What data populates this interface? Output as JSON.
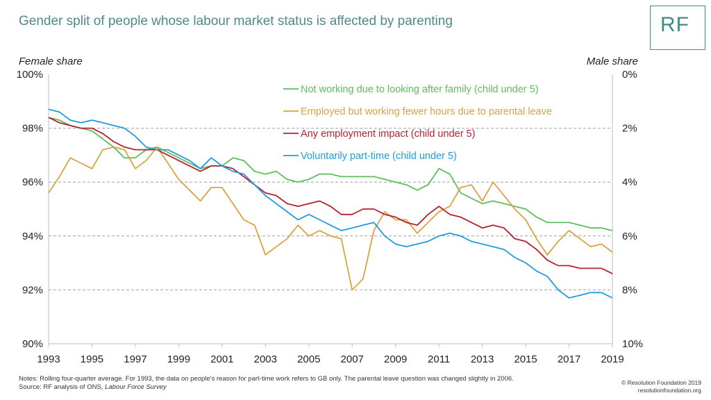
{
  "title": "Gender split of people whose labour market status is affected by parenting",
  "logo_text": "RF",
  "notes": {
    "line1": "Notes: Rolling four-quarter average. For 1993, the data on people's reason for part-time work refers to GB only. The parental leave question was changed slightly in 2006.",
    "source_prefix": "Source: RF analysis of ONS, ",
    "source_italic": "Labour Force Survey"
  },
  "copyright": {
    "line1": "© Resolution Foundation 2019",
    "line2": "resolutionfoundation.org"
  },
  "chart_data": {
    "type": "line",
    "ylabel_left": "Female share",
    "ylabel_right": "Male share",
    "ylim": [
      90,
      100
    ],
    "xlim": [
      1993,
      2019
    ],
    "left_ticks": [
      "90%",
      "92%",
      "94%",
      "96%",
      "98%",
      "100%"
    ],
    "right_ticks": [
      "10%",
      "8%",
      "6%",
      "4%",
      "2%",
      "0%"
    ],
    "x_ticks": [
      "1993",
      "1995",
      "1997",
      "1999",
      "2001",
      "2003",
      "2005",
      "2007",
      "2009",
      "2011",
      "2013",
      "2015",
      "2017",
      "2019"
    ],
    "grid": "horizontal dashed",
    "legend_position": "top-right",
    "colors": {
      "green": "#5bbf5b",
      "orange": "#d9a33f",
      "red": "#b8202f",
      "blue": "#1e9be3"
    },
    "series": [
      {
        "name": "Not working due to looking after family (child under 5)",
        "color": "#5bbf5b",
        "x": [
          1993,
          1993.5,
          1994,
          1994.5,
          1995,
          1995.5,
          1996,
          1996.5,
          1997,
          1997.5,
          1998,
          1998.5,
          1999,
          1999.5,
          2000,
          2000.5,
          2001,
          2001.5,
          2002,
          2002.5,
          2003,
          2003.5,
          2004,
          2004.5,
          2005,
          2005.5,
          2006,
          2006.5,
          2007,
          2007.5,
          2008,
          2008.5,
          2009,
          2009.5,
          2010,
          2010.5,
          2011,
          2011.5,
          2012,
          2012.5,
          2013,
          2013.5,
          2014,
          2014.5,
          2015,
          2015.5,
          2016,
          2016.5,
          2017,
          2017.5,
          2018,
          2018.5,
          2019
        ],
        "values": [
          98.4,
          98.3,
          98.1,
          98.0,
          97.9,
          97.6,
          97.3,
          96.9,
          96.9,
          97.2,
          97.3,
          97.1,
          96.9,
          96.7,
          96.5,
          96.6,
          96.6,
          96.9,
          96.8,
          96.4,
          96.3,
          96.4,
          96.1,
          96.0,
          96.1,
          96.3,
          96.3,
          96.2,
          96.2,
          96.2,
          96.2,
          96.1,
          96.0,
          95.9,
          95.7,
          95.9,
          96.5,
          96.3,
          95.6,
          95.4,
          95.2,
          95.3,
          95.2,
          95.1,
          95.0,
          94.7,
          94.5,
          94.5,
          94.5,
          94.4,
          94.3,
          94.3,
          94.2
        ]
      },
      {
        "name": "Employed but working fewer hours due to parental leave",
        "color": "#d9a33f",
        "x": [
          1993,
          1993.5,
          1994,
          1994.5,
          1995,
          1995.5,
          1996,
          1996.5,
          1997,
          1997.5,
          1998,
          1998.5,
          1999,
          1999.5,
          2000,
          2000.5,
          2001,
          2001.5,
          2002,
          2002.5,
          2003,
          2003.5,
          2004,
          2004.5,
          2005,
          2005.5,
          2006,
          2006.5,
          2007,
          2007.5,
          2008,
          2008.5,
          2009,
          2009.5,
          2010,
          2010.5,
          2011,
          2011.5,
          2012,
          2012.5,
          2013,
          2013.5,
          2014,
          2014.5,
          2015,
          2015.5,
          2016,
          2016.5,
          2017,
          2017.5,
          2018,
          2018.5,
          2019
        ],
        "values": [
          95.6,
          96.2,
          96.9,
          96.7,
          96.5,
          97.2,
          97.3,
          97.2,
          96.5,
          96.8,
          97.3,
          96.7,
          96.1,
          95.7,
          95.3,
          95.8,
          95.8,
          95.2,
          94.6,
          94.4,
          93.3,
          93.6,
          93.9,
          94.4,
          94.0,
          94.2,
          94.0,
          93.9,
          92.0,
          92.4,
          94.2,
          94.9,
          94.6,
          94.6,
          94.1,
          94.5,
          94.9,
          95.1,
          95.8,
          95.9,
          95.3,
          96.0,
          95.5,
          95.0,
          94.6,
          93.9,
          93.3,
          93.8,
          94.2,
          93.9,
          93.6,
          93.7,
          93.4
        ]
      },
      {
        "name": "Any employment impact (child under 5)",
        "color": "#b8202f",
        "x": [
          1993,
          1993.5,
          1994,
          1994.5,
          1995,
          1995.5,
          1996,
          1996.5,
          1997,
          1997.5,
          1998,
          1998.5,
          1999,
          1999.5,
          2000,
          2000.5,
          2001,
          2001.5,
          2002,
          2002.5,
          2003,
          2003.5,
          2004,
          2004.5,
          2005,
          2005.5,
          2006,
          2006.5,
          2007,
          2007.5,
          2008,
          2008.5,
          2009,
          2009.5,
          2010,
          2010.5,
          2011,
          2011.5,
          2012,
          2012.5,
          2013,
          2013.5,
          2014,
          2014.5,
          2015,
          2015.5,
          2016,
          2016.5,
          2017,
          2017.5,
          2018,
          2018.5,
          2019
        ],
        "values": [
          98.4,
          98.2,
          98.1,
          98.0,
          98.0,
          97.8,
          97.5,
          97.3,
          97.2,
          97.2,
          97.2,
          97.0,
          96.8,
          96.6,
          96.4,
          96.6,
          96.6,
          96.5,
          96.2,
          95.9,
          95.6,
          95.5,
          95.2,
          95.1,
          95.2,
          95.3,
          95.1,
          94.8,
          94.8,
          95.0,
          95.0,
          94.8,
          94.7,
          94.5,
          94.4,
          94.8,
          95.1,
          94.8,
          94.7,
          94.5,
          94.3,
          94.4,
          94.3,
          93.9,
          93.8,
          93.5,
          93.1,
          92.9,
          92.9,
          92.8,
          92.8,
          92.8,
          92.6
        ]
      },
      {
        "name": "Voluntarily part-time (child under 5)",
        "color": "#1e9be3",
        "x": [
          1993,
          1993.5,
          1994,
          1994.5,
          1995,
          1995.5,
          1996,
          1996.5,
          1997,
          1997.5,
          1998,
          1998.5,
          1999,
          1999.5,
          2000,
          2000.5,
          2001,
          2001.5,
          2002,
          2002.5,
          2003,
          2003.5,
          2004,
          2004.5,
          2005,
          2005.5,
          2006,
          2006.5,
          2007,
          2007.5,
          2008,
          2008.5,
          2009,
          2009.5,
          2010,
          2010.5,
          2011,
          2011.5,
          2012,
          2012.5,
          2013,
          2013.5,
          2014,
          2014.5,
          2015,
          2015.5,
          2016,
          2016.5,
          2017,
          2017.5,
          2018,
          2018.5,
          2019
        ],
        "values": [
          98.7,
          98.6,
          98.3,
          98.2,
          98.3,
          98.2,
          98.1,
          98.0,
          97.7,
          97.3,
          97.2,
          97.2,
          97.0,
          96.8,
          96.5,
          96.9,
          96.6,
          96.4,
          96.3,
          95.9,
          95.5,
          95.2,
          94.9,
          94.6,
          94.8,
          94.6,
          94.4,
          94.2,
          94.3,
          94.4,
          94.5,
          94.0,
          93.7,
          93.6,
          93.7,
          93.8,
          94.0,
          94.1,
          94.0,
          93.8,
          93.7,
          93.6,
          93.5,
          93.2,
          93.0,
          92.7,
          92.5,
          92.0,
          91.7,
          91.8,
          91.9,
          91.9,
          91.7
        ]
      }
    ]
  }
}
